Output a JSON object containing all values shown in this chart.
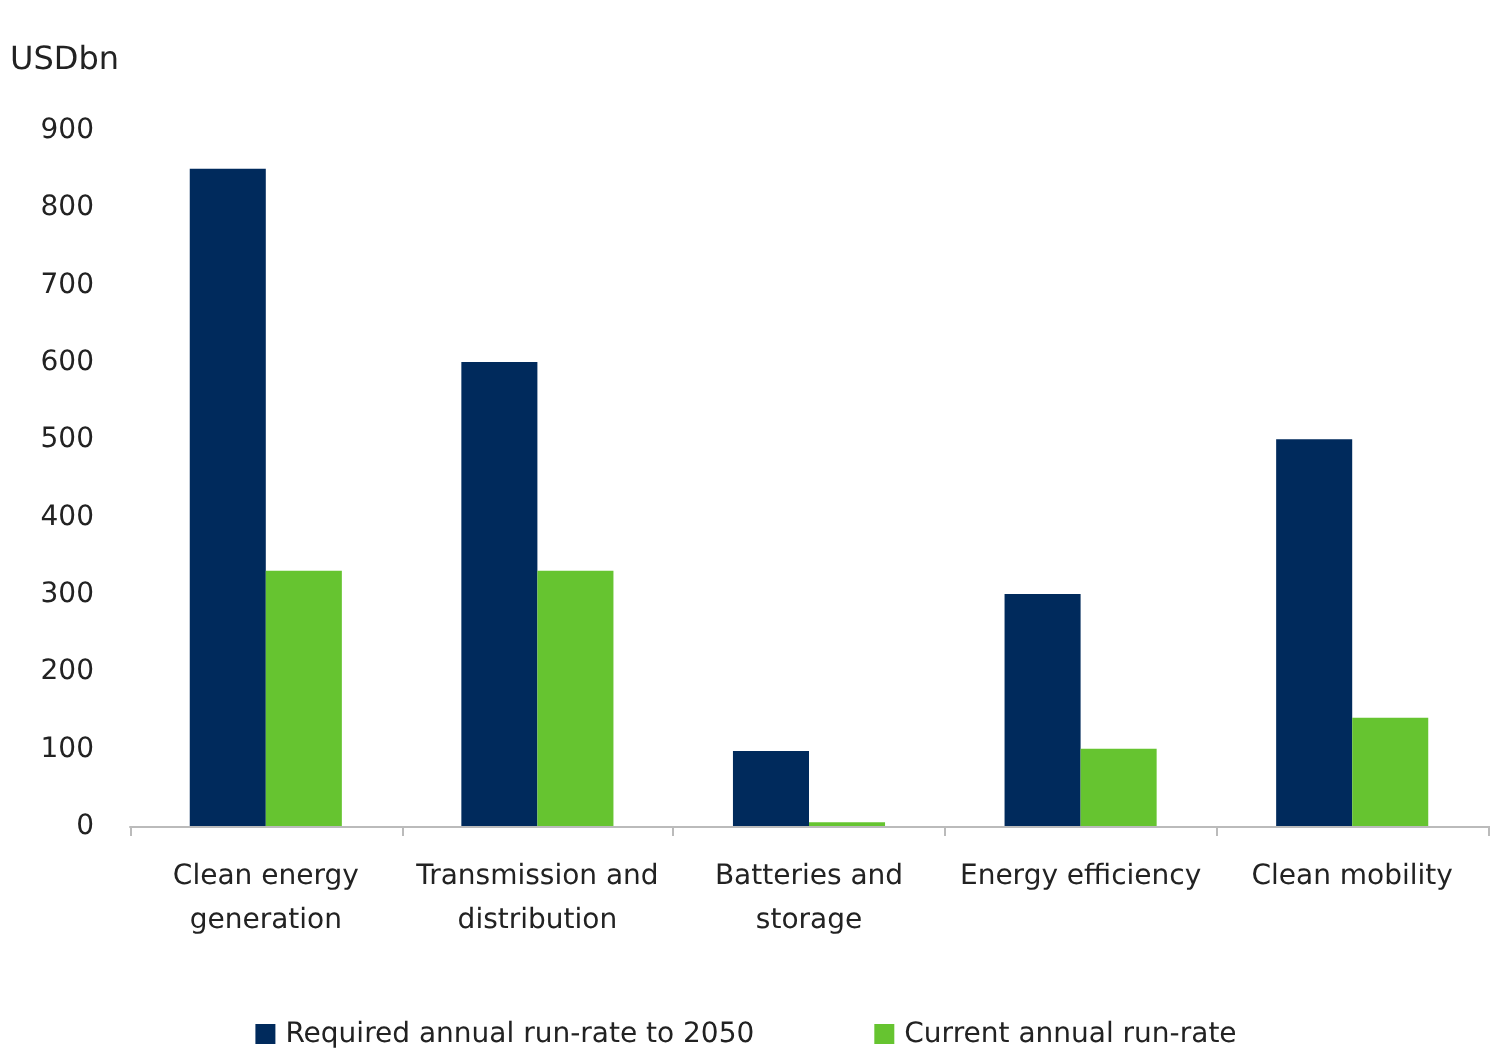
{
  "chart_data": {
    "type": "bar",
    "ylabel": "USDbn",
    "categories": [
      "Clean energy\ngeneration",
      "Transmission and\ndistribution",
      "Batteries and\nstorage",
      "Energy efficiency",
      "Clean mobility"
    ],
    "series": [
      {
        "name": "Required annual run-rate to 2050",
        "color": "#002a5c",
        "values": [
          850,
          600,
          97,
          300,
          500
        ]
      },
      {
        "name": "Current annual run-rate",
        "color": "#66c430",
        "values": [
          330,
          330,
          5,
          100,
          140
        ]
      }
    ],
    "ylim": [
      0,
      900
    ],
    "yticks": [
      0,
      100,
      200,
      300,
      400,
      500,
      600,
      700,
      800,
      900
    ],
    "grid": false,
    "legend": "bottom"
  }
}
